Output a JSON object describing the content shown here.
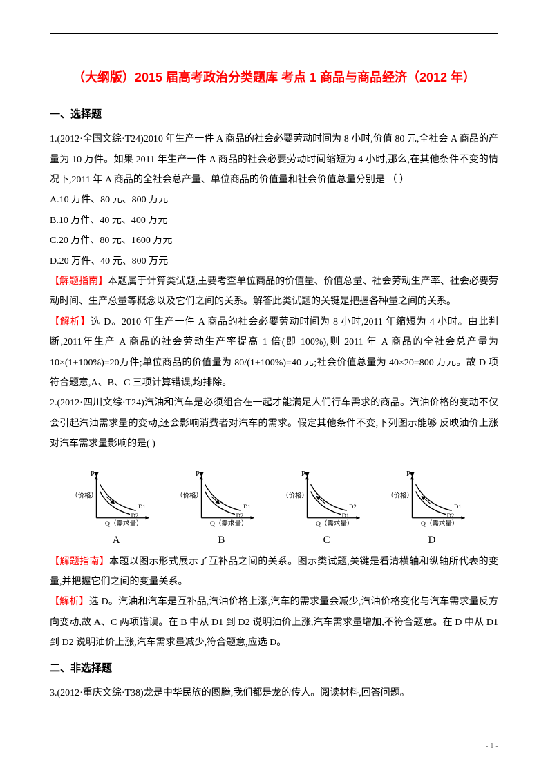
{
  "title": "（大纲版）2015 届高考政治分类题库 考点 1 商品与商品经济（2012 年）",
  "section1_heading": "一、选择题",
  "q1_p1": "1.(2012·全国文综·T24)2010 年生产一件 A 商品的社会必要劳动时间为 8 小时,价值 80 元,全社会 A 商品的产量为 10 万件。如果 2011 年生产一件 A 商品的社会必要劳动时间缩短为 4 小时,那么,在其他条件不变的情况下,2011 年 A 商品的全社会总产量、单位商品的价值量和社会价值总量分别是 （   ）",
  "q1_optA": "A.10 万件、80 元、800 万元",
  "q1_optB": "B.10 万件、40 元、400 万元",
  "q1_optC": "C.20 万件、80 元、1600 万元",
  "q1_optD": "D.20 万件、40 元、800 万元",
  "hint_label": "【解题指南】",
  "ans_label": "【解析】",
  "q1_hint_text": "本题属于计算类试题,主要考查单位商品的价值量、价值总量、社会劳动生产率、社会必要劳动时间、生产总量等概念以及它们之间的关系。解答此类试题的关键是把握各种量之间的关系。",
  "q1_ans_text": "选 D。2010 年生产一件 A 商品的社会必要劳动时间为 8 小时,2011 年缩短为 4 小时。由此判断,2011年生产 A 商品的社会劳动生产率提高 1 倍(即 100%),则 2011 年 A 商品的全社会总产量为 10×(1+100%)=20万件;单位商品的价值量为 80/(1+100%)=40 元;社会价值总量为 40×20=800 万元。故 D 项符合题意,A、B、C 三项计算错误,均排除。",
  "q2_p1": "2.(2012·四川文综·T24)汽油和汽车是必须组合在一起才能满足人们行车需求的商品。汽油价格的变动不仅会引起汽油需求量的变动,还会影响消费者对汽车的需求。假定其他条件不变,下列图示能够 反映油价上涨对汽车需求量影响的是(    )",
  "q2_hint_text": "本题以图示形式展示了互补品之间的关系。图示类试题,关键是看清横轴和纵轴所代表的变量,并把握它们之间的变量关系。",
  "q2_ans_text": "选 D。汽油和汽车是互补品,汽油价格上涨,汽车的需求量会减少,汽油价格变化与汽车需求量反方向变动,故 A、C 两项错误。在 B 中从 D1 到 D2 说明油价上涨,汽车需求量增加,不符合题意。在 D 中从 D1到 D2 说明油价上涨,汽车需求量减少,符合题意,应选 D。",
  "section2_heading": "二、非选择题",
  "q3_p1": "3.(2012·重庆文综·T38)龙是中华民族的图腾,我们都是龙的传人。阅读材料,回答问题。",
  "charts": {
    "yaxis_label": "P",
    "yaxis_sub": "（价格）",
    "xaxis_label": "Q（需求量）",
    "axis_color": "#000000",
    "curve_color": "#000000",
    "items": [
      {
        "letter": "A",
        "d1_top": true,
        "arrow_dir": "down-right"
      },
      {
        "letter": "B",
        "d1_top": true,
        "arrow_dir": "down-right"
      },
      {
        "letter": "C",
        "d1_top": false,
        "arrow_dir": "up-left"
      },
      {
        "letter": "D",
        "d1_top": true,
        "arrow_dir": "up-left"
      }
    ]
  },
  "page_num": "- 1 -"
}
